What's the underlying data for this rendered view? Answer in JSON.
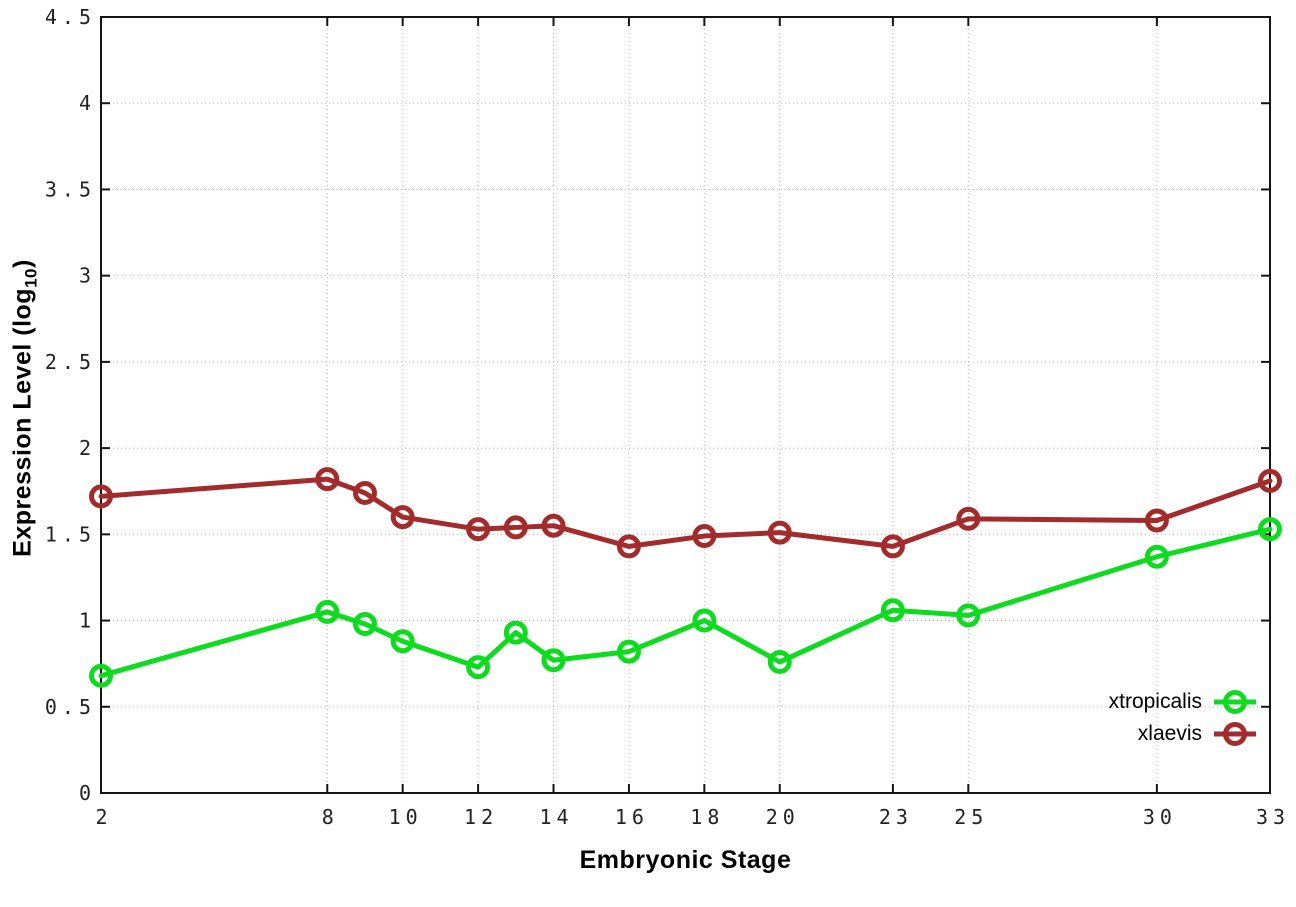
{
  "chart_data": {
    "type": "line",
    "title": "",
    "xlabel": "Embryonic Stage",
    "ylabel": "Expression Level (log10)",
    "ylabel_parts": {
      "base": "Expression Level (log",
      "sub": "10",
      "close": ")"
    },
    "xlim": [
      2,
      33
    ],
    "ylim": [
      0,
      4.5
    ],
    "grid": true,
    "legend_position": "bottom-right-inside",
    "x_ticks": [
      2,
      8,
      10,
      12,
      14,
      16,
      18,
      20,
      23,
      25,
      30,
      33
    ],
    "x_tick_labels": [
      "2",
      "8",
      "10",
      "12",
      "14",
      "16",
      "18",
      "20",
      "23",
      "25",
      "30",
      "33"
    ],
    "y_ticks": [
      0,
      0.5,
      1,
      1.5,
      2,
      2.5,
      3,
      3.5,
      4,
      4.5
    ],
    "y_tick_labels": [
      "0",
      "0.5",
      "1",
      "1.5",
      "2",
      "2.5",
      "3",
      "3.5",
      "4",
      "4.5"
    ],
    "x": [
      2,
      8,
      9,
      10,
      12,
      13,
      14,
      16,
      18,
      20,
      23,
      25,
      30,
      33
    ],
    "series": [
      {
        "name": "xtropicalis",
        "color": "#0ddc1e",
        "values": [
          0.68,
          1.05,
          0.98,
          0.88,
          0.73,
          0.93,
          0.77,
          0.82,
          1.0,
          0.76,
          1.06,
          1.03,
          1.37,
          1.53
        ]
      },
      {
        "name": "xlaevis",
        "color": "#a42b2b",
        "values": [
          1.72,
          1.82,
          1.74,
          1.6,
          1.53,
          1.54,
          1.55,
          1.43,
          1.49,
          1.51,
          1.43,
          1.59,
          1.58,
          1.81
        ]
      }
    ],
    "colors": {
      "grid": "#b5b5b5",
      "axis": "#141414",
      "text": "#222222"
    }
  }
}
